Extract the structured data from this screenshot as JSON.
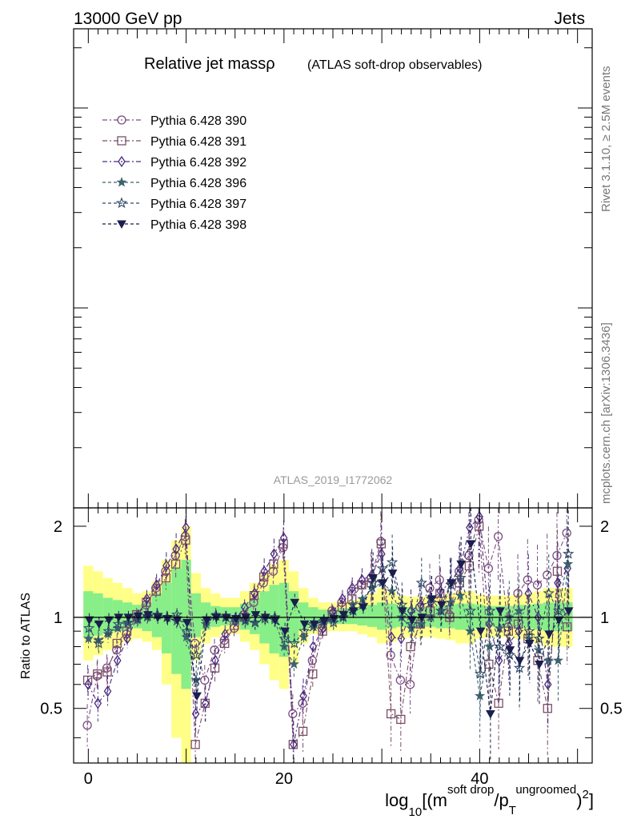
{
  "header": {
    "left": "13000 GeV pp",
    "right": "Jets"
  },
  "side_labels": {
    "events": "Rivet 3.1.10, ≥ 2.5M events",
    "site": "mcplots.cern.ch [arXiv:1306.3436]"
  },
  "colors": {
    "yellow_band": "#ffff88",
    "green_band": "#88ee88"
  },
  "chart_data": [
    {
      "type": "line",
      "title": "Relative jet massρ",
      "subtitle": "(ATLAS soft-drop observables)",
      "watermark": "ATLAS_2019_I1772062",
      "legend_position": "top-left",
      "series": [
        {
          "name": "Pythia 6.428 390",
          "color": "#7a4d80",
          "marker": "circle-open",
          "dash": "6,3,2,3"
        },
        {
          "name": "Pythia 6.428 391",
          "color": "#7a4d66",
          "marker": "square-open",
          "dash": "6,3,2,3"
        },
        {
          "name": "Pythia 6.428 392",
          "color": "#4a2a80",
          "marker": "diamond-open",
          "dash": "6,3,2,3"
        },
        {
          "name": "Pythia 6.428 396",
          "color": "#3f6270",
          "marker": "star-filled",
          "dash": "4,3"
        },
        {
          "name": "Pythia 6.428 397",
          "color": "#2f4a66",
          "marker": "star-open",
          "dash": "4,3"
        },
        {
          "name": "Pythia 6.428 398",
          "color": "#1a1f4d",
          "marker": "triangle-down-filled",
          "dash": "4,3"
        }
      ]
    },
    {
      "type": "line",
      "ylabel": "Ratio to ATLAS",
      "xlabel": {
        "main": "log",
        "sub": "10",
        "after": "[(m",
        "sup1": "soft drop",
        "slash": "/p",
        "sub2": "T",
        "sup2": "ungroomed",
        "end": ")",
        "sup3": "2",
        "close": "]"
      },
      "xlim": [
        -1.5,
        51.5
      ],
      "ylim": [
        0.33,
        2.3
      ],
      "log_y": true,
      "x_ticks": [
        "0",
        "20",
        "40"
      ],
      "y_ticks": [
        "0.5",
        "1",
        "2"
      ],
      "reference": 1,
      "x": [
        0,
        1,
        2,
        3,
        4,
        5,
        6,
        7,
        8,
        9,
        10,
        11,
        12,
        13,
        14,
        15,
        16,
        17,
        18,
        19,
        20,
        21,
        22,
        23,
        24,
        25,
        26,
        27,
        28,
        29,
        30,
        31,
        32,
        33,
        34,
        35,
        36,
        37,
        38,
        39,
        40,
        41,
        42,
        43,
        44,
        45,
        46,
        47,
        48,
        49
      ],
      "yellow_band": [
        [
          0.72,
          1.48
        ],
        [
          0.75,
          1.42
        ],
        [
          0.78,
          1.35
        ],
        [
          0.8,
          1.3
        ],
        [
          0.83,
          1.25
        ],
        [
          0.85,
          1.2
        ],
        [
          0.83,
          1.22
        ],
        [
          0.78,
          1.32
        ],
        [
          0.6,
          1.55
        ],
        [
          0.4,
          1.8
        ],
        [
          0.3,
          2.0
        ],
        [
          0.72,
          1.4
        ],
        [
          0.82,
          1.25
        ],
        [
          0.86,
          1.2
        ],
        [
          0.88,
          1.16
        ],
        [
          0.88,
          1.16
        ],
        [
          0.83,
          1.22
        ],
        [
          0.78,
          1.3
        ],
        [
          0.7,
          1.4
        ],
        [
          0.62,
          1.5
        ],
        [
          0.58,
          1.55
        ],
        [
          0.7,
          1.42
        ],
        [
          0.82,
          1.25
        ],
        [
          0.88,
          1.16
        ],
        [
          0.9,
          1.12
        ],
        [
          0.9,
          1.12
        ],
        [
          0.9,
          1.13
        ],
        [
          0.9,
          1.14
        ],
        [
          0.88,
          1.16
        ],
        [
          0.86,
          1.2
        ],
        [
          0.82,
          1.25
        ],
        [
          0.83,
          1.22
        ],
        [
          0.85,
          1.18
        ],
        [
          0.86,
          1.17
        ],
        [
          0.86,
          1.17
        ],
        [
          0.86,
          1.18
        ],
        [
          0.85,
          1.18
        ],
        [
          0.84,
          1.2
        ],
        [
          0.82,
          1.22
        ],
        [
          0.82,
          1.22
        ],
        [
          0.85,
          1.19
        ],
        [
          0.86,
          1.18
        ],
        [
          0.86,
          1.18
        ],
        [
          0.86,
          1.18
        ],
        [
          0.85,
          1.19
        ],
        [
          0.84,
          1.2
        ],
        [
          0.82,
          1.22
        ],
        [
          0.8,
          1.25
        ],
        [
          0.8,
          1.25
        ],
        [
          0.8,
          1.25
        ]
      ],
      "green_band": [
        [
          0.86,
          1.22
        ],
        [
          0.87,
          1.2
        ],
        [
          0.89,
          1.16
        ],
        [
          0.9,
          1.14
        ],
        [
          0.91,
          1.12
        ],
        [
          0.92,
          1.1
        ],
        [
          0.9,
          1.12
        ],
        [
          0.86,
          1.2
        ],
        [
          0.76,
          1.3
        ],
        [
          0.65,
          1.45
        ],
        [
          0.58,
          1.55
        ],
        [
          0.86,
          1.2
        ],
        [
          0.91,
          1.12
        ],
        [
          0.93,
          1.09
        ],
        [
          0.94,
          1.08
        ],
        [
          0.94,
          1.08
        ],
        [
          0.91,
          1.11
        ],
        [
          0.88,
          1.16
        ],
        [
          0.82,
          1.22
        ],
        [
          0.76,
          1.28
        ],
        [
          0.74,
          1.3
        ],
        [
          0.82,
          1.22
        ],
        [
          0.91,
          1.12
        ],
        [
          0.94,
          1.08
        ],
        [
          0.95,
          1.06
        ],
        [
          0.95,
          1.06
        ],
        [
          0.95,
          1.07
        ],
        [
          0.95,
          1.07
        ],
        [
          0.94,
          1.08
        ],
        [
          0.93,
          1.1
        ],
        [
          0.91,
          1.12
        ],
        [
          0.92,
          1.11
        ],
        [
          0.93,
          1.09
        ],
        [
          0.93,
          1.08
        ],
        [
          0.93,
          1.08
        ],
        [
          0.93,
          1.09
        ],
        [
          0.92,
          1.09
        ],
        [
          0.92,
          1.1
        ],
        [
          0.91,
          1.11
        ],
        [
          0.91,
          1.11
        ],
        [
          0.92,
          1.1
        ],
        [
          0.93,
          1.09
        ],
        [
          0.93,
          1.09
        ],
        [
          0.93,
          1.09
        ],
        [
          0.92,
          1.1
        ],
        [
          0.92,
          1.1
        ],
        [
          0.91,
          1.11
        ],
        [
          0.9,
          1.12
        ],
        [
          0.9,
          1.12
        ],
        [
          0.9,
          1.12
        ]
      ],
      "values": [
        [
          0.44,
          0.64,
          0.68,
          0.78,
          0.88,
          1.0,
          1.1,
          1.25,
          1.42,
          1.6,
          1.85,
          0.82,
          0.62,
          0.78,
          0.84,
          0.92,
          1.02,
          1.12,
          1.3,
          1.42,
          1.7,
          0.48,
          0.52,
          0.72,
          0.92,
          1.05,
          1.12,
          1.22,
          1.28,
          1.35,
          1.78,
          0.75,
          0.62,
          0.6,
          1.08,
          1.25,
          1.33,
          1.02,
          1.42,
          1.6,
          2.1,
          1.45,
          1.85,
          0.93,
          1.2,
          1.33,
          1.28,
          1.38,
          1.6,
          1.9
        ],
        [
          0.62,
          0.65,
          0.66,
          0.82,
          0.9,
          1.02,
          1.12,
          1.22,
          1.35,
          1.5,
          1.8,
          0.38,
          0.52,
          0.68,
          0.82,
          0.94,
          1.0,
          1.18,
          1.36,
          1.5,
          1.75,
          0.38,
          0.42,
          0.65,
          0.9,
          1.02,
          1.08,
          1.15,
          1.28,
          1.3,
          1.75,
          0.48,
          0.46,
          0.8,
          0.95,
          1.05,
          1.2,
          1.0,
          1.3,
          1.48,
          2.0,
          0.7,
          0.52,
          0.9,
          0.95,
          0.85,
          0.72,
          0.5,
          1.42,
          0.93
        ],
        [
          0.6,
          0.52,
          0.57,
          0.72,
          0.85,
          1.0,
          1.15,
          1.28,
          1.48,
          1.68,
          1.98,
          0.48,
          0.52,
          0.72,
          0.88,
          0.98,
          1.08,
          1.2,
          1.42,
          1.62,
          1.83,
          0.38,
          0.55,
          0.8,
          0.92,
          1.04,
          1.15,
          1.25,
          1.33,
          1.38,
          1.62,
          0.86,
          0.85,
          1.05,
          1.1,
          1.12,
          1.22,
          1.3,
          1.45,
          1.98,
          2.15,
          0.95,
          0.72,
          0.82,
          0.9,
          1.2,
          1.0,
          0.6,
          1.3,
          1.45
        ],
        [
          0.85,
          0.84,
          0.88,
          0.92,
          0.96,
          0.98,
          1.0,
          1.02,
          1.0,
          0.97,
          0.86,
          0.62,
          0.95,
          1.02,
          1.0,
          0.98,
          0.97,
          0.96,
          1.0,
          0.98,
          0.8,
          0.7,
          0.86,
          0.93,
          0.96,
          0.98,
          1.0,
          1.1,
          1.15,
          1.25,
          1.3,
          1.22,
          1.0,
          0.92,
          0.95,
          1.0,
          1.05,
          1.12,
          1.18,
          0.9,
          0.55,
          0.8,
          0.92,
          1.0,
          1.05,
          0.85,
          0.78,
          0.72,
          0.72,
          1.5
        ],
        [
          0.92,
          0.82,
          0.9,
          0.95,
          0.96,
          0.99,
          1.01,
          1.02,
          1.0,
          1.02,
          0.9,
          0.75,
          0.97,
          1.01,
          1.0,
          0.99,
          0.98,
          0.96,
          0.99,
          1.0,
          0.85,
          0.82,
          0.9,
          0.95,
          0.97,
          0.96,
          1.0,
          1.05,
          1.1,
          1.3,
          1.45,
          1.52,
          1.1,
          0.95,
          1.3,
          1.15,
          1.05,
          1.28,
          1.35,
          1.05,
          0.65,
          1.05,
          0.8,
          0.75,
          0.68,
          0.9,
          0.85,
          1.2,
          1.05,
          1.62
        ],
        [
          0.98,
          0.95,
          0.98,
          1.0,
          1.0,
          1.01,
          1.02,
          1.0,
          0.99,
          0.98,
          0.96,
          0.55,
          0.98,
          1.0,
          1.0,
          0.99,
          1.0,
          1.02,
          1.0,
          0.98,
          0.9,
          1.12,
          0.95,
          0.95,
          0.97,
          0.99,
          1.02,
          1.05,
          1.08,
          1.35,
          1.3,
          1.4,
          1.05,
          0.98,
          1.0,
          1.15,
          1.1,
          1.3,
          1.5,
          1.75,
          0.9,
          0.48,
          1.05,
          0.78,
          0.72,
          0.82,
          0.7,
          0.88,
          0.98,
          1.05
        ]
      ]
    }
  ]
}
